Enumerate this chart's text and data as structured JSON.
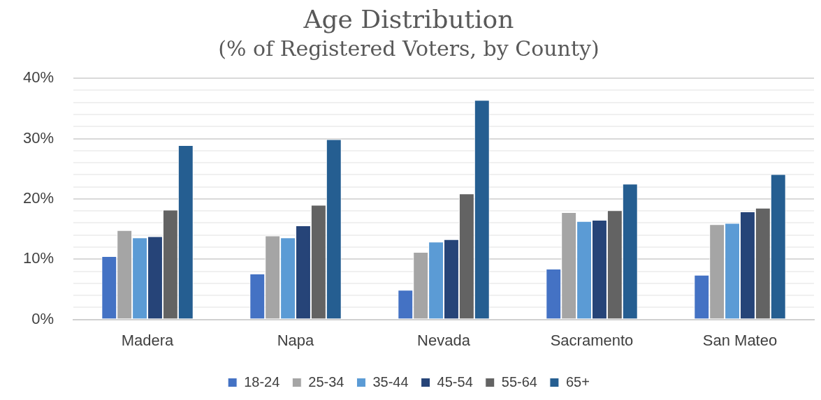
{
  "chart_data": {
    "type": "bar",
    "title": "Age Distribution",
    "subtitle": "(% of Registered Voters, by County)",
    "categories": [
      "Madera",
      "Napa",
      "Nevada",
      "Sacramento",
      "San Mateo"
    ],
    "series": [
      {
        "name": "18-24",
        "color": "#4472c4",
        "values": [
          10.5,
          7.6,
          4.9,
          8.4,
          7.4
        ]
      },
      {
        "name": "25-34",
        "color": "#a5a5a5",
        "values": [
          14.8,
          13.9,
          11.2,
          17.8,
          15.8
        ]
      },
      {
        "name": "35-44",
        "color": "#5b9bd5",
        "values": [
          13.6,
          13.6,
          12.9,
          16.3,
          16.0
        ]
      },
      {
        "name": "45-54",
        "color": "#264478",
        "values": [
          13.8,
          15.6,
          13.3,
          16.5,
          17.9
        ]
      },
      {
        "name": "55-64",
        "color": "#636363",
        "values": [
          18.2,
          19.0,
          20.9,
          18.1,
          18.5
        ]
      },
      {
        "name": "65+",
        "color": "#255e91",
        "values": [
          28.9,
          29.9,
          36.4,
          22.5,
          24.1
        ]
      }
    ],
    "ylim": [
      0,
      40
    ],
    "yticks": [
      {
        "value": 0,
        "label": "0%"
      },
      {
        "value": 2,
        "label": null
      },
      {
        "value": 4,
        "label": null
      },
      {
        "value": 6,
        "label": null
      },
      {
        "value": 8,
        "label": null
      },
      {
        "value": 10,
        "label": "10%"
      },
      {
        "value": 12,
        "label": null
      },
      {
        "value": 14,
        "label": null
      },
      {
        "value": 16,
        "label": null
      },
      {
        "value": 18,
        "label": null
      },
      {
        "value": 20,
        "label": "20%"
      },
      {
        "value": 22,
        "label": null
      },
      {
        "value": 24,
        "label": null
      },
      {
        "value": 26,
        "label": null
      },
      {
        "value": 28,
        "label": null
      },
      {
        "value": 30,
        "label": "30%"
      },
      {
        "value": 32,
        "label": null
      },
      {
        "value": 34,
        "label": null
      },
      {
        "value": 36,
        "label": null
      },
      {
        "value": 38,
        "label": null
      },
      {
        "value": 40,
        "label": "40%"
      }
    ],
    "grid": "y",
    "legend": "bottom"
  }
}
